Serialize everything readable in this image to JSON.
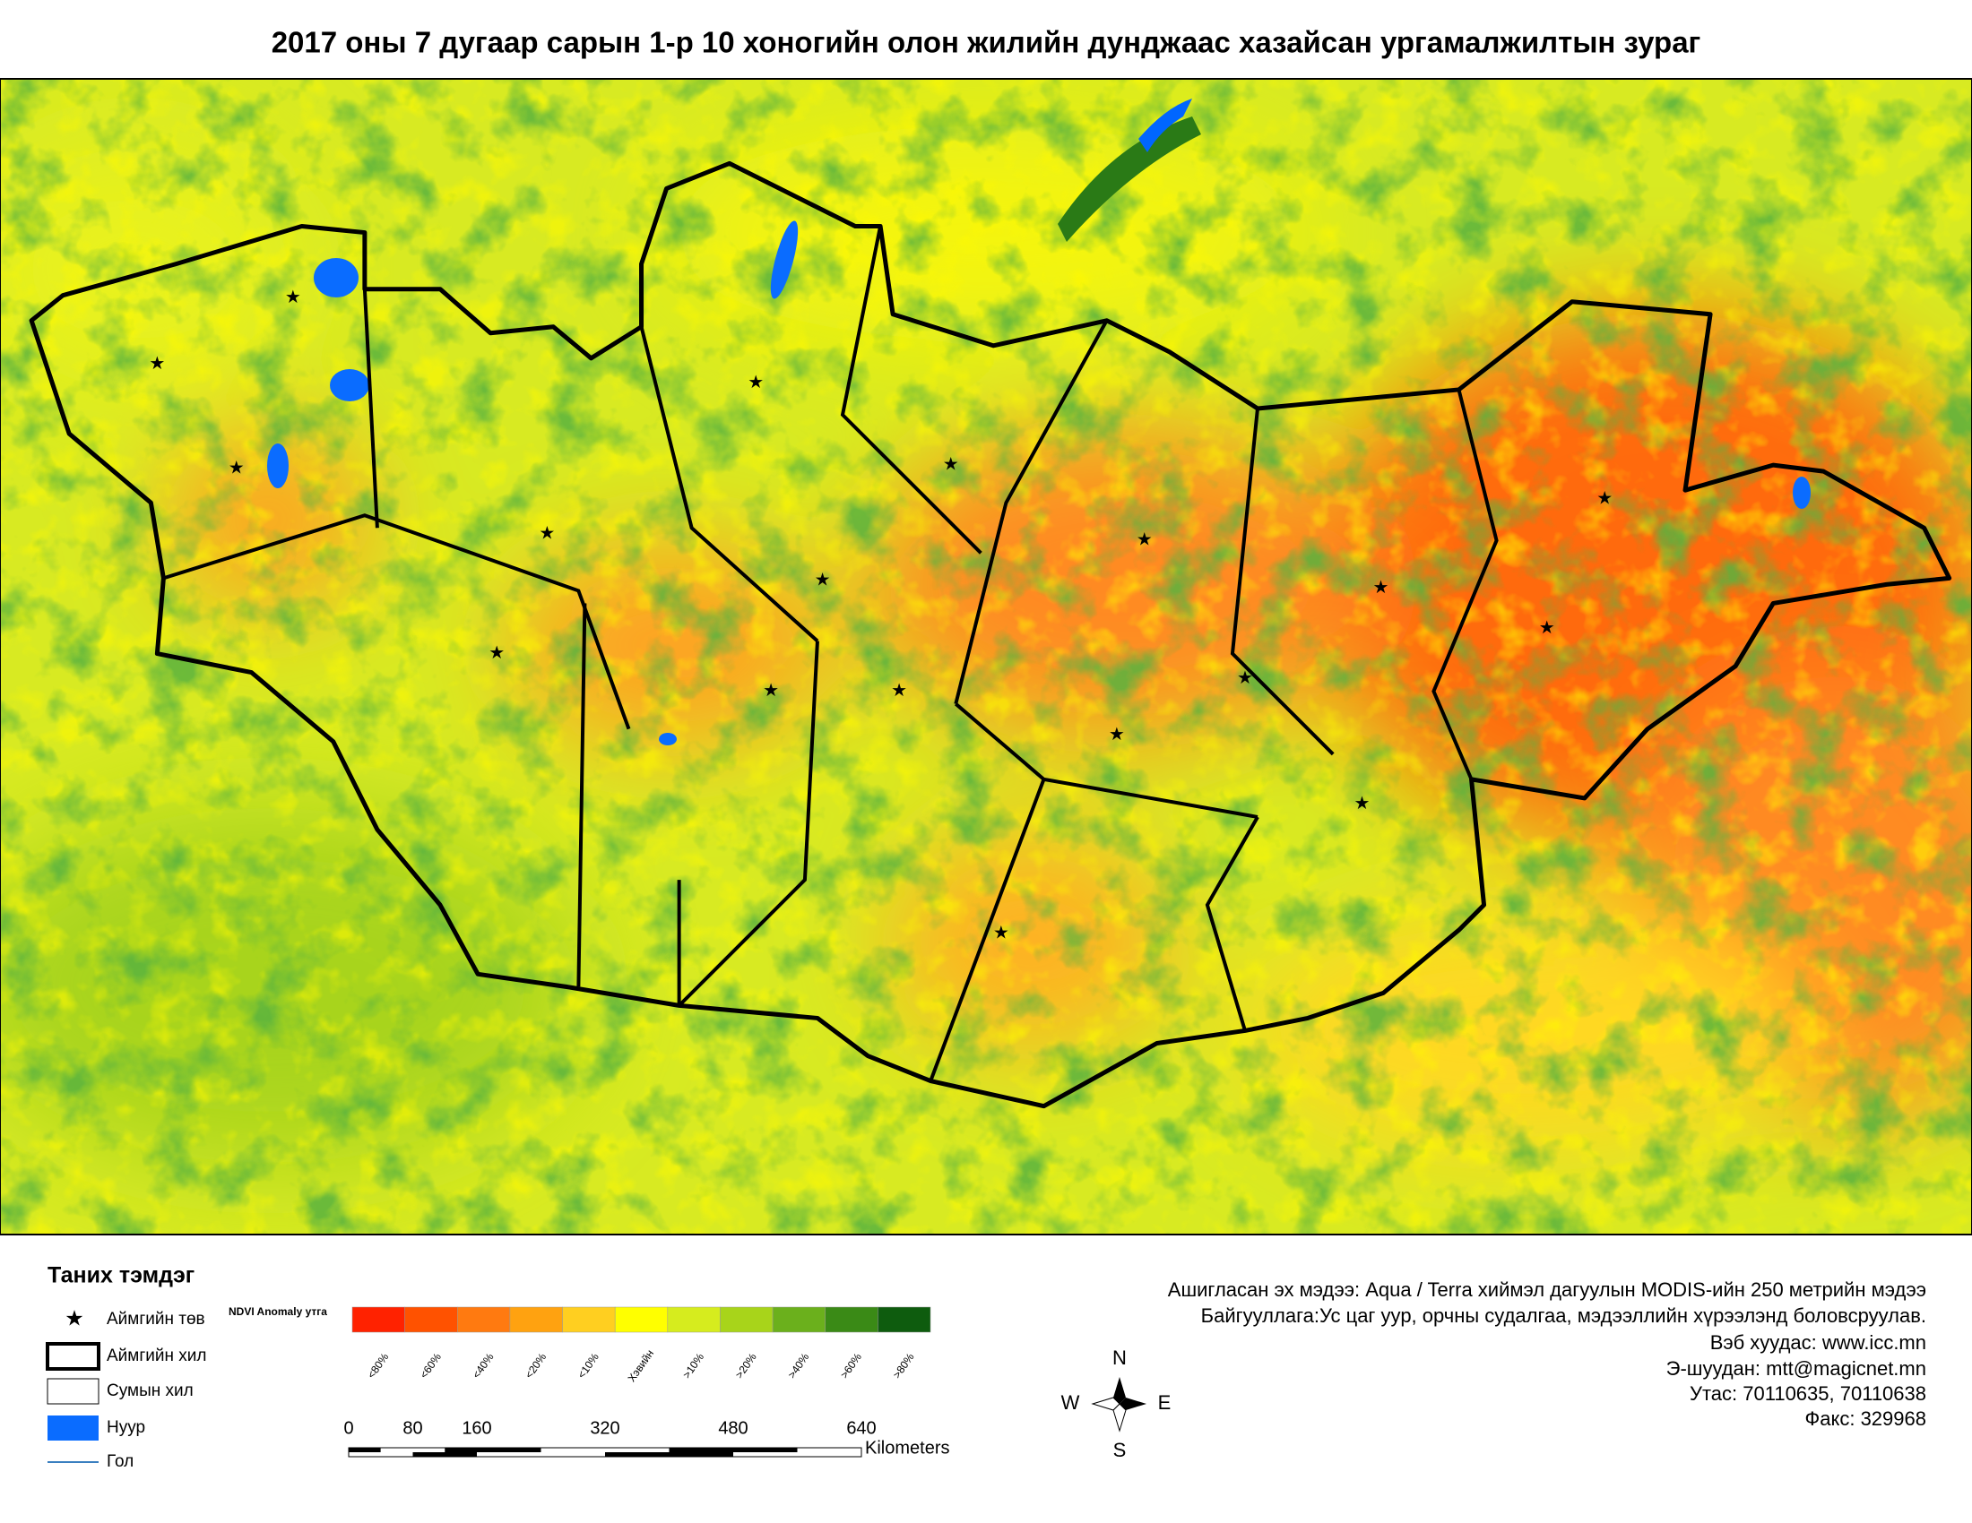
{
  "header": {
    "title": "2017 оны 7 дугаар сарын  1-р 10 хоногийн олон жилийн дунджаас хазайсан ургамалжилтын зураг"
  },
  "legend": {
    "title": "Таних тэмдэг",
    "items": [
      "Аймгийн төв",
      "Аймгийн хил",
      "Сумын хил",
      "Нуур",
      "Гол"
    ],
    "ndvi_label": "NDVI Anomaly утга",
    "classes": [
      {
        "label": "<80%",
        "color": "#ff2200"
      },
      {
        "label": "<60%",
        "color": "#ff5200"
      },
      {
        "label": "<40%",
        "color": "#ff7a10"
      },
      {
        "label": "<20%",
        "color": "#ffa210"
      },
      {
        "label": "<10%",
        "color": "#ffcf20"
      },
      {
        "label": "Хэвийн",
        "color": "#ffff00"
      },
      {
        "label": ">10%",
        "color": "#d6ec1e"
      },
      {
        "label": ">20%",
        "color": "#a8d41a"
      },
      {
        "label": ">40%",
        "color": "#6bb01c"
      },
      {
        "label": ">60%",
        "color": "#3a8a16"
      },
      {
        "label": ">80%",
        "color": "#0e5c0e"
      }
    ]
  },
  "scale_bar": {
    "ticks": [
      0,
      80,
      160,
      320,
      480,
      640
    ],
    "unit": "Kilometers"
  },
  "compass": {
    "n": "N",
    "s": "S",
    "w": "W",
    "e": "E"
  },
  "info": [
    "Ашигласан эх мэдээ: Aqua / Terra хиймэл дагуулын MODIS-ийн 250 метрийн мэдээ",
    "Байгууллага:Ус цаг уур, орчны судалгаа, мэдээллийн хүрээлэнд боловсруулав.",
    "Вэб хуудас: www.icc.mn",
    "Э-шуудан: mtt@magicnet.mn",
    "Утас: 70110635, 70110638",
    "Факс: 329968"
  ]
}
